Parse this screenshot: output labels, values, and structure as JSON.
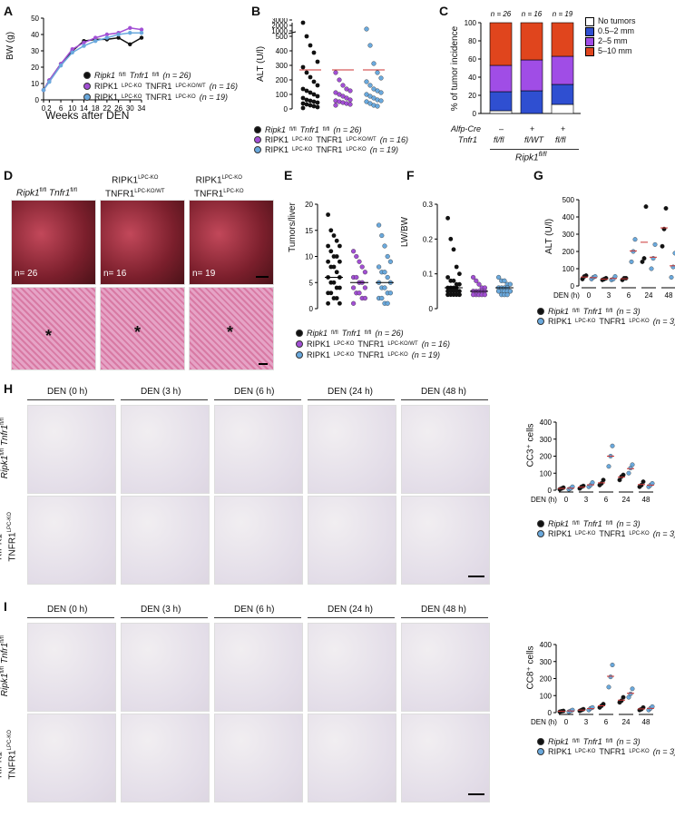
{
  "panels": {
    "A": "A",
    "B": "B",
    "C": "C",
    "D": "D",
    "E": "E",
    "F": "F",
    "G": "G",
    "H": "H",
    "I": "I"
  },
  "groups": {
    "ctrl": "Ripk1fl/fl Tnfr1fl/fl",
    "het": "RIPK1LPC-KO TNFR1LPC-KO/WT",
    "ko": "RIPK1LPC-KO TNFR1LPC-KO"
  },
  "colors": {
    "ctrl": "#111111",
    "het": "#a24fd4",
    "ko": "#6aa9dd",
    "no_tumor": "#ffffff",
    "small": "#2f4fd1",
    "mid": "#a04de6",
    "large": "#e0451d"
  },
  "A": {
    "ylabel": "BW (g)",
    "xlabel": "Weeks after DEN",
    "yticks": [
      "0",
      "10",
      "20",
      "30",
      "40",
      "50"
    ],
    "xticks": [
      "0",
      "2",
      "6",
      "10",
      "14",
      "18",
      "22",
      "26",
      "30",
      "34"
    ],
    "legend": [
      {
        "main": "Ripk1",
        "sup1": "fl/fl",
        "main2": " Tnfr1",
        "sup2": "fl/fl",
        "n": "(n = 26)"
      },
      {
        "main": "RIPK1",
        "sup1": "LPC-KO",
        "main2": " TNFR1",
        "sup2": "LPC-KO/WT",
        "n": "(n = 16)"
      },
      {
        "main": "RIPK1",
        "sup1": "LPC-KO",
        "main2": " TNFR1",
        "sup2": "LPC-KO",
        "n": "(n = 19)"
      }
    ]
  },
  "B": {
    "ylabel": "ALT (U/l)",
    "yticks": [
      "0",
      "100",
      "200",
      "300",
      "400",
      "500",
      "1000",
      "2000",
      "3000"
    ],
    "legend": [
      {
        "main": "Ripk1",
        "sup1": "fl/fl",
        "main2": " Tnfr1",
        "sup2": "fl/fl",
        "n": "(n = 26)"
      },
      {
        "main": "RIPK1",
        "sup1": "LPC-KO",
        "main2": " TNFR1",
        "sup2": "LPC-KO/WT",
        "n": "(n = 16)"
      },
      {
        "main": "RIPK1",
        "sup1": "LPC-KO",
        "main2": " TNFR1",
        "sup2": "LPC-KO",
        "n": "(n = 19)"
      }
    ]
  },
  "C": {
    "ylabel": "% of tumor incidence",
    "yticks": [
      "0",
      "20",
      "40",
      "60",
      "80",
      "100"
    ],
    "ns": [
      "n = 26",
      "n = 16",
      "n = 19"
    ],
    "legend": [
      "No tumors",
      "0.5–2 mm",
      "2–5  mm",
      "5–10 mm"
    ],
    "row1_label": "Alfp-Cre",
    "row1": [
      "–",
      "+",
      "+"
    ],
    "row2_label": "Tnfr1",
    "row2": [
      "fl/fl",
      "fl/WT",
      "fl/fl"
    ],
    "group_label": "Ripk1",
    "group_sup": "fl/fl"
  },
  "D": {
    "titles": [
      {
        "a": "Ripk1",
        "as": "fl/fl",
        "b": " Tnfr1",
        "bs": "fl/fl"
      },
      {
        "a": "RIPK1",
        "as": "LPC-KO",
        "b": "TNFR1",
        "bs": "LPC-KO/WT"
      },
      {
        "a": "RIPK1",
        "as": "LPC-KO",
        "b": "TNFR1",
        "bs": "LPC-KO"
      }
    ],
    "ns": [
      "n= 26",
      "n= 16",
      "n= 19"
    ],
    "asterisk": "*"
  },
  "E": {
    "ylabel": "Tumors/liver",
    "yticks": [
      "0",
      "5",
      "10",
      "15",
      "20"
    ]
  },
  "F": {
    "ylabel": "LW/BW",
    "yticks": [
      "0",
      "0.1",
      "0.2",
      "0.3"
    ]
  },
  "EF_legend": [
    {
      "main": "Ripk1",
      "sup1": "fl/fl",
      "main2": " Tnfr1",
      "sup2": "fl/fl",
      "n": "(n = 26)"
    },
    {
      "main": "RIPK1",
      "sup1": "LPC-KO",
      "main2": " TNFR1",
      "sup2": "LPC-KO/WT",
      "n": "(n = 16)"
    },
    {
      "main": "RIPK1",
      "sup1": "LPC-KO",
      "main2": " TNFR1",
      "sup2": "LPC-KO",
      "n": "(n = 19)"
    }
  ],
  "G": {
    "ylabel": "ALT (U/l)",
    "yticks": [
      "0",
      "100",
      "200",
      "300",
      "400",
      "500"
    ],
    "xlabel": "DEN (h)",
    "xticks": [
      "0",
      "3",
      "6",
      "24",
      "48"
    ],
    "legend": [
      {
        "main": "Ripk1",
        "sup1": "fl/fl",
        "main2": " Tnfr1",
        "sup2": "fl/fl",
        "n": "(n = 3)"
      },
      {
        "main": "RIPK1",
        "sup1": "LPC-KO",
        "main2": " TNFR1",
        "sup2": "LPC-KO",
        "n": "(n = 3)"
      }
    ]
  },
  "H": {
    "timepoints": [
      "DEN (0 h)",
      "DEN (3 h)",
      "DEN (6 h)",
      "DEN (24 h)",
      "DEN (48 h)"
    ],
    "row1": {
      "a": "Ripk1",
      "as": "fl/fl",
      "b": " Tnfr1",
      "bs": "fl/fl"
    },
    "row2": {
      "a": "RIPK1",
      "as": "LPC-KO",
      "b": "TNFR1",
      "bs": "LPC-KO"
    },
    "chart_ylabel": "CC3⁺ cells",
    "yticks": [
      "0",
      "100",
      "200",
      "300",
      "400"
    ],
    "xlabel": "DEN (h)",
    "xticks": [
      "0",
      "3",
      "6",
      "24",
      "48"
    ],
    "legend": [
      {
        "main": "Ripk1",
        "sup1": "fl/fl",
        "main2": " Tnfr1",
        "sup2": "fl/fl",
        "n": "(n = 3)"
      },
      {
        "main": "RIPK1",
        "sup1": "LPC-KO",
        "main2": " TNFR1",
        "sup2": "LPC-KO",
        "n": "(n = 3)"
      }
    ]
  },
  "I": {
    "timepoints": [
      "DEN (0 h)",
      "DEN (3 h)",
      "DEN (6 h)",
      "DEN (24 h)",
      "DEN (48 h)"
    ],
    "row1": {
      "a": "Ripk1",
      "as": "fl/fl",
      "b": " Tnfr1",
      "bs": "fl/fl"
    },
    "row2": {
      "a": "RIPK1",
      "as": "LPC-KO",
      "b": "TNFR1",
      "bs": "LPC-KO"
    },
    "chart_ylabel": "CC8⁺ cells",
    "yticks": [
      "0",
      "100",
      "200",
      "300",
      "400"
    ],
    "xlabel": "DEN (h)",
    "xticks": [
      "0",
      "3",
      "6",
      "24",
      "48"
    ],
    "legend": [
      {
        "main": "Ripk1",
        "sup1": "fl/fl",
        "main2": " Tnfr1",
        "sup2": "fl/fl",
        "n": "(n = 3)"
      },
      {
        "main": "RIPK1",
        "sup1": "LPC-KO",
        "main2": " TNFR1",
        "sup2": "LPC-KO",
        "n": "(n = 3)"
      }
    ]
  },
  "chart_data": [
    {
      "id": "A",
      "type": "line",
      "x": [
        0,
        2,
        6,
        10,
        14,
        18,
        22,
        26,
        30,
        34
      ],
      "ylim": [
        0,
        50
      ],
      "series": [
        {
          "name": "Ripk1fl/fl Tnfr1fl/fl",
          "values": [
            6,
            12,
            22,
            30,
            36,
            37,
            37,
            38,
            34,
            38
          ]
        },
        {
          "name": "RIPK1LPC-KO TNFR1LPC-KO/WT",
          "values": [
            6,
            12,
            22,
            31,
            35,
            38,
            40,
            41,
            44,
            43
          ]
        },
        {
          "name": "RIPK1LPC-KO TNFR1LPC-KO",
          "values": [
            6,
            11,
            21,
            29,
            33,
            36,
            38,
            40,
            41,
            41
          ]
        }
      ]
    },
    {
      "id": "C",
      "type": "bar",
      "categories": [
        "fl/fl –",
        "fl/WT +",
        "fl/fl +"
      ],
      "ylim": [
        0,
        100
      ],
      "series": [
        {
          "name": "No tumors",
          "values": [
            3,
            0,
            10
          ]
        },
        {
          "name": "0.5–2 mm",
          "values": [
            21,
            25,
            22
          ]
        },
        {
          "name": "2–5  mm",
          "values": [
            29,
            34,
            31
          ]
        },
        {
          "name": "5–10 mm",
          "values": [
            47,
            41,
            37
          ]
        }
      ]
    },
    {
      "id": "G",
      "type": "scatter",
      "categories": [
        "0",
        "3",
        "6",
        "24",
        "48"
      ],
      "ylim": [
        0,
        500
      ],
      "series": [
        {
          "name": "Ripk1fl/fl Tnfr1fl/fl",
          "values": [
            [
              40,
              55,
              60
            ],
            [
              35,
              40,
              45
            ],
            [
              35,
              45,
              45
            ],
            [
              140,
              160,
              460
            ],
            [
              230,
              330,
              450
            ]
          ]
        },
        {
          "name": "RIPK1LPC-KO TNFR1LPC-KO",
          "values": [
            [
              40,
              50,
              55
            ],
            [
              35,
              40,
              55
            ],
            [
              140,
              200,
              270
            ],
            [
              100,
              160,
              240
            ],
            [
              50,
              110,
              190
            ]
          ]
        }
      ]
    },
    {
      "id": "H",
      "type": "scatter",
      "categories": [
        "0",
        "3",
        "6",
        "24",
        "48"
      ],
      "ylim": [
        0,
        400
      ],
      "series": [
        {
          "name": "Ripk1fl/fl Tnfr1fl/fl",
          "values": [
            [
              5,
              10,
              15
            ],
            [
              10,
              20,
              25
            ],
            [
              30,
              40,
              60
            ],
            [
              60,
              80,
              90
            ],
            [
              20,
              30,
              50
            ]
          ]
        },
        {
          "name": "RIPK1LPC-KO TNFR1LPC-KO",
          "values": [
            [
              5,
              10,
              20
            ],
            [
              20,
              30,
              45
            ],
            [
              140,
              200,
              260
            ],
            [
              100,
              130,
              150
            ],
            [
              20,
              30,
              40
            ]
          ]
        }
      ]
    },
    {
      "id": "I",
      "type": "scatter",
      "categories": [
        "0",
        "3",
        "6",
        "24",
        "48"
      ],
      "ylim": [
        0,
        400
      ],
      "series": [
        {
          "name": "Ripk1fl/fl Tnfr1fl/fl",
          "values": [
            [
              5,
              8,
              10
            ],
            [
              10,
              15,
              20
            ],
            [
              30,
              40,
              50
            ],
            [
              60,
              70,
              90
            ],
            [
              15,
              20,
              30
            ]
          ]
        },
        {
          "name": "RIPK1LPC-KO TNFR1LPC-KO",
          "values": [
            [
              5,
              10,
              15
            ],
            [
              15,
              25,
              30
            ],
            [
              150,
              210,
              280
            ],
            [
              90,
              110,
              140
            ],
            [
              15,
              25,
              35
            ]
          ]
        }
      ]
    }
  ]
}
